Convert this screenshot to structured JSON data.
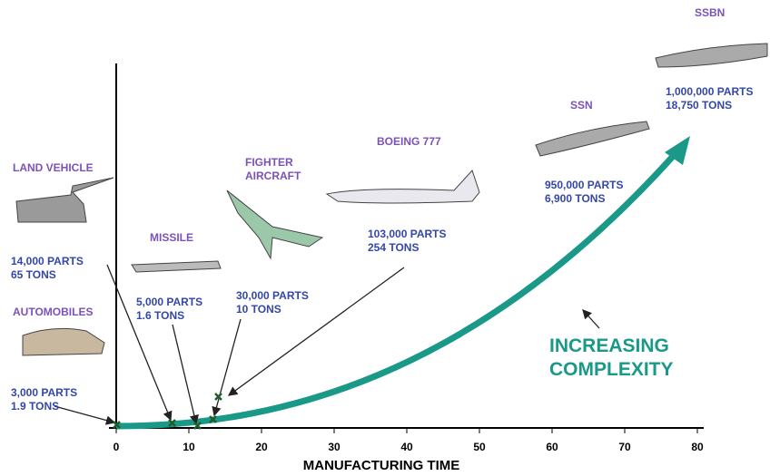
{
  "axis": {
    "label": "MANUFACTURING TIME",
    "ticks": [
      "0",
      "10",
      "20",
      "30",
      "40",
      "50",
      "60",
      "70",
      "80"
    ]
  },
  "items": [
    {
      "title": [
        "AUTOMOBILES"
      ],
      "lines": [
        "3,000 PARTS",
        "1.9 TONS"
      ]
    },
    {
      "title": [
        "LAND VEHICLE"
      ],
      "lines": [
        "14,000 PARTS",
        "65 TONS"
      ]
    },
    {
      "title": [
        "MISSILE"
      ],
      "lines": [
        "5,000 PARTS",
        "1.6 TONS"
      ]
    },
    {
      "title": [
        "FIGHTER",
        "AIRCRAFT"
      ],
      "lines": [
        "30,000 PARTS",
        "10 TONS"
      ]
    },
    {
      "title": [
        "BOEING 777"
      ],
      "lines": [
        "103,000 PARTS",
        "254 TONS"
      ]
    },
    {
      "title": [
        "SSN"
      ],
      "lines": [
        "950,000 PARTS",
        "6,900 TONS"
      ]
    },
    {
      "title": [
        "SSBN"
      ],
      "lines": [
        "1,000,000 PARTS",
        "18,750 TONS"
      ]
    }
  ],
  "trend": [
    "INCREASING",
    "COMPLEXITY"
  ]
}
